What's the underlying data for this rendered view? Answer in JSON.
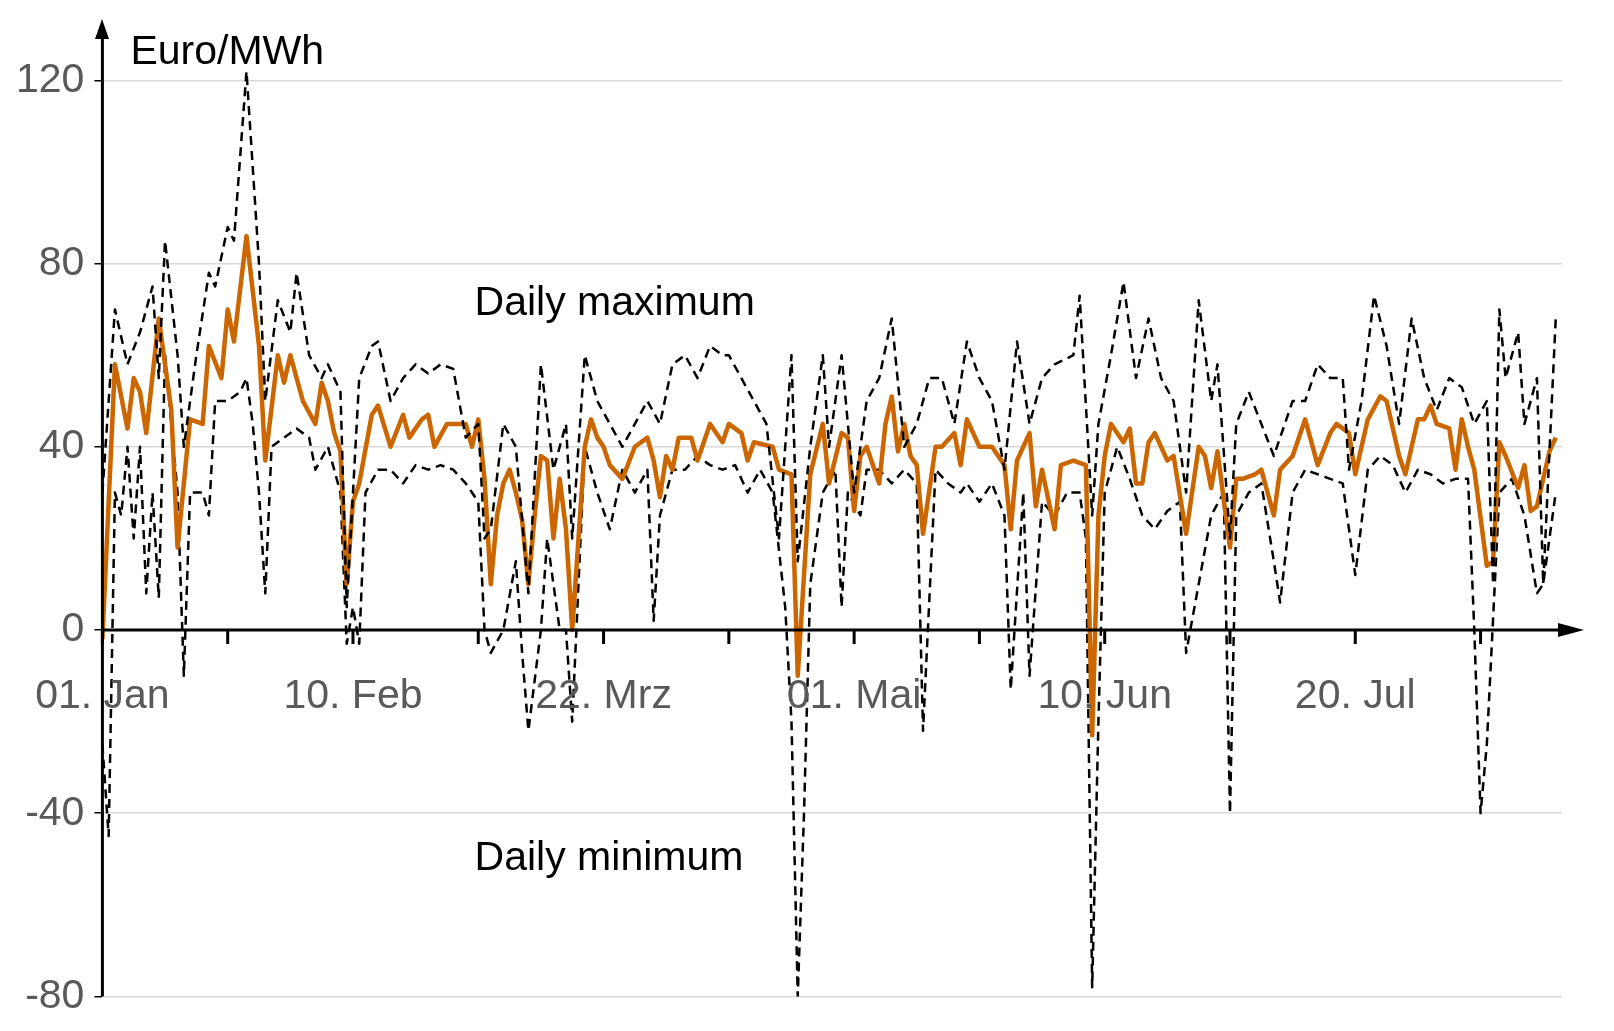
{
  "chart_data": {
    "type": "line",
    "ylabel": "Euro/MWh",
    "ylim": [
      -80,
      130
    ],
    "yticks": [
      -80,
      -40,
      0,
      40,
      80,
      120
    ],
    "xlim": [
      "--01-01",
      "--08-22"
    ],
    "xticks": [
      {
        "value": "--01-01",
        "label": "01. Jan"
      },
      {
        "value": "--01-21",
        "label": null
      },
      {
        "value": "--02-10",
        "label": "10. Feb"
      },
      {
        "value": "--03-02",
        "label": null
      },
      {
        "value": "--03-22",
        "label": "22. Mrz"
      },
      {
        "value": "--04-11",
        "label": null
      },
      {
        "value": "--05-01",
        "label": "01. Mai"
      },
      {
        "value": "--05-21",
        "label": null
      },
      {
        "value": "--06-10",
        "label": "10. Jun"
      },
      {
        "value": "--06-30",
        "label": null
      },
      {
        "value": "--07-20",
        "label": "20. Jul"
      },
      {
        "value": "--08-09",
        "label": null
      }
    ],
    "grid": "y",
    "legend": false,
    "marker": "none",
    "series": [
      {
        "name": "Daily maximum",
        "color": "#000000",
        "line_style": "dashed",
        "x": [
          "--01-01",
          "--01-03",
          "--01-05",
          "--01-07",
          "--01-09",
          "--01-10",
          "--01-11",
          "--01-13",
          "--01-14",
          "--01-16",
          "--01-18",
          "--01-19",
          "--01-21",
          "--01-22",
          "--01-24",
          "--01-26",
          "--01-27",
          "--01-29",
          "--01-31",
          "--02-01",
          "--02-03",
          "--02-05",
          "--02-06",
          "--02-08",
          "--02-09",
          "--02-11",
          "--02-13",
          "--02-14",
          "--02-16",
          "--02-18",
          "--02-20",
          "--02-22",
          "--02-24",
          "--02-26",
          "--02-28",
          "--03-02",
          "--03-03",
          "--03-04",
          "--03-06",
          "--03-08",
          "--03-10",
          "--03-12",
          "--03-14",
          "--03-16",
          "--03-17",
          "--03-19",
          "--03-21",
          "--03-23",
          "--03-25",
          "--03-27",
          "--03-29",
          "--03-31",
          "--04-02",
          "--04-04",
          "--04-06",
          "--04-08",
          "--04-10",
          "--04-11",
          "--04-13",
          "--04-15",
          "--04-17",
          "--04-19",
          "--04-21",
          "--04-22",
          "--04-24",
          "--04-26",
          "--04-27",
          "--04-29",
          "--05-01",
          "--05-03",
          "--05-05",
          "--05-07",
          "--05-09",
          "--05-11",
          "--05-13",
          "--05-15",
          "--05-17",
          "--05-19",
          "--05-21",
          "--05-23",
          "--05-25",
          "--05-27",
          "--05-29",
          "--05-31",
          "--06-02",
          "--06-05",
          "--06-06",
          "--06-08",
          "--06-09",
          "--06-11",
          "--06-13",
          "--06-15",
          "--06-17",
          "--06-19",
          "--06-21",
          "--06-23",
          "--06-25",
          "--06-27",
          "--06-28",
          "--06-30",
          "--07-01",
          "--07-03",
          "--07-05",
          "--07-07",
          "--07-10",
          "--07-12",
          "--07-14",
          "--07-16",
          "--07-18",
          "--07-19",
          "--07-21",
          "--07-23",
          "--07-25",
          "--07-27",
          "--07-29",
          "--07-31",
          "--08-02",
          "--08-04",
          "--08-06",
          "--08-08",
          "--08-10",
          "--08-11",
          "--08-12",
          "--08-13",
          "--08-15",
          "--08-16",
          "--08-18",
          "--08-19",
          "--08-21"
        ],
        "values": [
          30,
          70,
          58,
          65,
          75,
          55,
          85,
          60,
          40,
          60,
          78,
          75,
          88,
          85,
          122,
          80,
          50,
          72,
          65,
          78,
          60,
          55,
          58,
          52,
          5,
          55,
          62,
          63,
          50,
          55,
          58,
          56,
          58,
          57,
          42,
          45,
          20,
          22,
          45,
          40,
          8,
          58,
          35,
          45,
          20,
          60,
          50,
          45,
          40,
          45,
          50,
          45,
          58,
          60,
          55,
          62,
          60,
          60,
          55,
          50,
          45,
          20,
          60,
          15,
          40,
          60,
          40,
          60,
          30,
          50,
          55,
          68,
          40,
          45,
          55,
          55,
          45,
          63,
          55,
          50,
          35,
          63,
          45,
          55,
          58,
          60,
          73,
          25,
          45,
          60,
          76,
          55,
          68,
          55,
          50,
          30,
          72,
          50,
          58,
          20,
          45,
          52,
          45,
          38,
          50,
          50,
          58,
          55,
          55,
          35,
          50,
          73,
          62,
          45,
          68,
          55,
          48,
          55,
          53,
          45,
          50,
          10,
          70,
          55,
          65,
          45,
          55,
          10,
          68
        ]
      },
      {
        "color": "#cc6600",
        "line_style": "solid",
        "x": [
          "--01-01",
          "--01-03",
          "--01-05",
          "--01-06",
          "--01-07",
          "--01-08",
          "--01-10",
          "--01-12",
          "--01-13",
          "--01-15",
          "--01-17",
          "--01-18",
          "--01-20",
          "--01-21",
          "--01-22",
          "--01-24",
          "--01-26",
          "--01-27",
          "--01-29",
          "--01-30",
          "--01-31",
          "--02-02",
          "--02-04",
          "--02-05",
          "--02-06",
          "--02-07",
          "--02-08",
          "--02-09",
          "--02-10",
          "--02-11",
          "--02-13",
          "--02-14",
          "--02-16",
          "--02-18",
          "--02-19",
          "--02-21",
          "--02-22",
          "--02-23",
          "--02-25",
          "--02-28",
          "--03-01",
          "--03-02",
          "--03-03",
          "--03-04",
          "--03-05",
          "--03-06",
          "--03-07",
          "--03-08",
          "--03-09",
          "--03-10",
          "--03-11",
          "--03-12",
          "--03-13",
          "--03-14",
          "--03-15",
          "--03-16",
          "--03-17",
          "--03-19",
          "--03-20",
          "--03-21",
          "--03-22",
          "--03-23",
          "--03-25",
          "--03-27",
          "--03-29",
          "--03-30",
          "--03-31",
          "--04-01",
          "--04-02",
          "--04-03",
          "--04-05",
          "--04-06",
          "--04-08",
          "--04-10",
          "--04-11",
          "--04-13",
          "--04-14",
          "--04-15",
          "--04-18",
          "--04-19",
          "--04-21",
          "--04-22",
          "--04-24",
          "--04-26",
          "--04-27",
          "--04-29",
          "--04-30",
          "--05-01",
          "--05-02",
          "--05-03",
          "--05-05",
          "--05-06",
          "--05-07",
          "--05-08",
          "--05-09",
          "--05-10",
          "--05-11",
          "--05-12",
          "--05-14",
          "--05-15",
          "--05-17",
          "--05-18",
          "--05-19",
          "--05-21",
          "--05-23",
          "--05-25",
          "--05-26",
          "--05-27",
          "--05-29",
          "--05-30",
          "--05-31",
          "--06-02",
          "--06-03",
          "--06-05",
          "--06-07",
          "--06-08",
          "--06-09",
          "--06-10",
          "--06-11",
          "--06-13",
          "--06-14",
          "--06-15",
          "--06-16",
          "--06-17",
          "--06-18",
          "--06-20",
          "--06-21",
          "--06-23",
          "--06-25",
          "--06-26",
          "--06-27",
          "--06-28",
          "--06-30",
          "--07-01",
          "--07-02",
          "--07-04",
          "--07-05",
          "--07-07",
          "--07-08",
          "--07-10",
          "--07-12",
          "--07-14",
          "--07-16",
          "--07-17",
          "--07-19",
          "--07-20",
          "--07-22",
          "--07-24",
          "--07-25",
          "--07-27",
          "--07-28",
          "--07-30",
          "--07-31",
          "--08-01",
          "--08-02",
          "--08-04",
          "--08-05",
          "--08-06",
          "--08-07",
          "--08-08",
          "--08-10",
          "--08-11",
          "--08-12",
          "--08-13",
          "--08-15",
          "--08-16",
          "--08-17",
          "--08-18",
          "--08-20",
          "--08-21"
        ],
        "values": [
          -2,
          58,
          44,
          55,
          52,
          43,
          68,
          48,
          18,
          46,
          45,
          62,
          55,
          70,
          63,
          86,
          62,
          37,
          60,
          54,
          60,
          50,
          45,
          54,
          50,
          43,
          39,
          10,
          28,
          32,
          47,
          49,
          40,
          47,
          42,
          46,
          47,
          40,
          45,
          45,
          40,
          46,
          33,
          10,
          25,
          32,
          35,
          30,
          24,
          10,
          25,
          38,
          37,
          20,
          33,
          22,
          0,
          40,
          46,
          42,
          40,
          36,
          33,
          40,
          42,
          37,
          29,
          38,
          35,
          42,
          42,
          37,
          45,
          41,
          45,
          43,
          37,
          41,
          40,
          35,
          34,
          -10,
          34,
          45,
          32,
          43,
          42,
          26,
          38,
          40,
          32,
          45,
          51,
          39,
          45,
          38,
          36,
          21,
          40,
          40,
          43,
          36,
          46,
          40,
          40,
          36,
          22,
          37,
          43,
          27,
          35,
          22,
          36,
          37,
          36,
          -23,
          25,
          38,
          45,
          41,
          44,
          32,
          32,
          41,
          43,
          37,
          38,
          21,
          40,
          38,
          31,
          39,
          18,
          33,
          33,
          34,
          35,
          25,
          35,
          38,
          46,
          36,
          43,
          45,
          43,
          34,
          46,
          51,
          50,
          38,
          34,
          46,
          46,
          49,
          45,
          44,
          35,
          46,
          40,
          35,
          14,
          15,
          41,
          38,
          31,
          36,
          26,
          27,
          39,
          42
        ]
      },
      {
        "name": "Daily minimum",
        "color": "#000000",
        "line_style": "dashed",
        "x": [
          "--01-01",
          "--01-02",
          "--01-03",
          "--01-04",
          "--01-05",
          "--01-06",
          "--01-07",
          "--01-08",
          "--01-09",
          "--01-10",
          "--01-11",
          "--01-13",
          "--01-14",
          "--01-15",
          "--01-17",
          "--01-18",
          "--01-19",
          "--01-21",
          "--01-23",
          "--01-24",
          "--01-25",
          "--01-26",
          "--01-27",
          "--01-28",
          "--01-30",
          "--02-01",
          "--02-03",
          "--02-04",
          "--02-06",
          "--02-08",
          "--02-09",
          "--02-10",
          "--02-11",
          "--02-12",
          "--02-14",
          "--02-16",
          "--02-18",
          "--02-20",
          "--02-22",
          "--02-24",
          "--02-26",
          "--02-28",
          "--03-02",
          "--03-03",
          "--03-04",
          "--03-06",
          "--03-08",
          "--03-09",
          "--03-10",
          "--03-12",
          "--03-13",
          "--03-15",
          "--03-16",
          "--03-17",
          "--03-19",
          "--03-21",
          "--03-23",
          "--03-25",
          "--03-27",
          "--03-29",
          "--03-30",
          "--03-31",
          "--04-02",
          "--04-04",
          "--04-06",
          "--04-08",
          "--04-10",
          "--04-12",
          "--04-14",
          "--04-16",
          "--04-18",
          "--04-20",
          "--04-21",
          "--04-22",
          "--04-23",
          "--04-24",
          "--04-26",
          "--04-28",
          "--04-29",
          "--04-30",
          "--05-02",
          "--05-03",
          "--05-05",
          "--05-07",
          "--05-09",
          "--05-11",
          "--05-12",
          "--05-14",
          "--05-16",
          "--05-18",
          "--05-19",
          "--05-21",
          "--05-23",
          "--05-25",
          "--05-26",
          "--05-28",
          "--05-29",
          "--05-31",
          "--06-02",
          "--06-04",
          "--06-06",
          "--06-07",
          "--06-08",
          "--06-09",
          "--06-10",
          "--06-12",
          "--06-14",
          "--06-16",
          "--06-18",
          "--06-20",
          "--06-22",
          "--06-23",
          "--06-25",
          "--06-27",
          "--06-29",
          "--06-30",
          "--07-01",
          "--07-03",
          "--07-05",
          "--07-07",
          "--07-08",
          "--07-10",
          "--07-12",
          "--07-14",
          "--07-16",
          "--07-18",
          "--07-20",
          "--07-22",
          "--07-24",
          "--07-26",
          "--07-28",
          "--07-30",
          "--08-01",
          "--08-03",
          "--08-05",
          "--08-07",
          "--08-08",
          "--08-09",
          "--08-10",
          "--08-12",
          "--08-14",
          "--08-16",
          "--08-18",
          "--08-19",
          "--08-21"
        ],
        "values": [
          -25,
          -45,
          30,
          25,
          40,
          20,
          40,
          8,
          30,
          7,
          60,
          30,
          -10,
          30,
          30,
          25,
          50,
          50,
          52,
          55,
          45,
          30,
          8,
          40,
          42,
          44,
          42,
          35,
          40,
          30,
          -3,
          5,
          -3,
          30,
          35,
          35,
          32,
          36,
          35,
          36,
          35,
          32,
          28,
          0,
          -5,
          0,
          15,
          -5,
          -22,
          0,
          20,
          0,
          0,
          -20,
          40,
          30,
          22,
          35,
          30,
          35,
          2,
          25,
          35,
          35,
          38,
          36,
          35,
          36,
          30,
          35,
          30,
          5,
          -20,
          -80,
          -40,
          10,
          30,
          35,
          5,
          30,
          25,
          35,
          35,
          32,
          35,
          32,
          -22,
          35,
          32,
          30,
          32,
          28,
          32,
          25,
          -13,
          30,
          -10,
          28,
          25,
          30,
          30,
          20,
          -78,
          -20,
          30,
          40,
          33,
          25,
          22,
          26,
          28,
          -5,
          10,
          25,
          30,
          -40,
          25,
          30,
          32,
          15,
          6,
          30,
          35,
          34,
          33,
          32,
          12,
          35,
          38,
          36,
          30,
          35,
          34,
          32,
          33,
          33,
          0,
          -40,
          -25,
          30,
          33,
          25,
          8,
          10,
          30
        ]
      }
    ]
  }
}
